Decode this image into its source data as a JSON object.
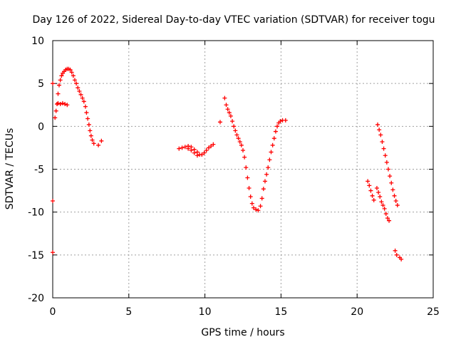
{
  "chart_data": {
    "type": "scatter",
    "title": "Day 126 of 2022, Sidereal Day-to-day VTEC variation (SDTVAR) for receiver togu",
    "xlabel": "GPS time / hours",
    "ylabel": "SDTVAR / TECUs",
    "xlim": [
      0,
      25
    ],
    "ylim": [
      -20,
      10
    ],
    "x_ticks": [
      0,
      5,
      10,
      15,
      20,
      25
    ],
    "y_ticks": [
      -20,
      -15,
      -10,
      -5,
      0,
      5,
      10
    ],
    "x_tick_labels": [
      "0",
      "5",
      "10",
      "15",
      "20",
      "25"
    ],
    "y_tick_labels": [
      "-20",
      "-15",
      "-10",
      "-5",
      "0",
      "5",
      "10"
    ],
    "grid": true,
    "legend": "none",
    "marker": "plus",
    "color": "#ff0000",
    "series": [
      {
        "points": [
          [
            0.0,
            5.0
          ],
          [
            0.0,
            -8.7
          ],
          [
            0.0,
            -14.7
          ],
          [
            0.15,
            1.0
          ],
          [
            0.22,
            1.8
          ],
          [
            0.28,
            2.6
          ],
          [
            0.35,
            3.8
          ],
          [
            0.42,
            4.8
          ],
          [
            0.5,
            5.4
          ],
          [
            0.58,
            5.9
          ],
          [
            0.66,
            6.2
          ],
          [
            0.75,
            6.4
          ],
          [
            0.85,
            6.6
          ],
          [
            0.95,
            6.7
          ],
          [
            1.05,
            6.7
          ],
          [
            1.15,
            6.6
          ],
          [
            1.25,
            6.3
          ],
          [
            1.35,
            5.9
          ],
          [
            1.45,
            5.4
          ],
          [
            1.55,
            5.0
          ],
          [
            1.65,
            4.5
          ],
          [
            1.75,
            4.1
          ],
          [
            1.85,
            3.7
          ],
          [
            1.95,
            3.3
          ],
          [
            2.05,
            2.9
          ],
          [
            2.15,
            2.3
          ],
          [
            2.22,
            1.6
          ],
          [
            2.3,
            0.9
          ],
          [
            2.38,
            0.2
          ],
          [
            2.45,
            -0.5
          ],
          [
            2.52,
            -1.1
          ],
          [
            2.6,
            -1.6
          ],
          [
            2.7,
            -2.0
          ],
          [
            0.35,
            2.7
          ],
          [
            0.5,
            2.6
          ],
          [
            0.65,
            2.7
          ],
          [
            0.8,
            2.6
          ],
          [
            0.95,
            2.5
          ],
          [
            3.0,
            -2.2
          ],
          [
            3.2,
            -1.7
          ],
          [
            8.3,
            -2.6
          ],
          [
            8.5,
            -2.5
          ],
          [
            8.7,
            -2.4
          ],
          [
            8.9,
            -2.3
          ],
          [
            9.1,
            -2.4
          ],
          [
            9.3,
            -2.7
          ],
          [
            9.5,
            -3.0
          ],
          [
            9.65,
            -3.3
          ],
          [
            9.8,
            -3.3
          ],
          [
            9.95,
            -3.1
          ],
          [
            10.1,
            -2.8
          ],
          [
            10.25,
            -2.5
          ],
          [
            10.4,
            -2.3
          ],
          [
            10.55,
            -2.1
          ],
          [
            8.9,
            -2.6
          ],
          [
            9.1,
            -2.8
          ],
          [
            9.3,
            -3.1
          ],
          [
            9.5,
            -3.4
          ],
          [
            11.0,
            0.5
          ],
          [
            11.3,
            3.3
          ],
          [
            11.4,
            2.5
          ],
          [
            11.5,
            2.0
          ],
          [
            11.6,
            1.6
          ],
          [
            11.7,
            1.2
          ],
          [
            11.8,
            0.6
          ],
          [
            11.9,
            0.0
          ],
          [
            12.0,
            -0.5
          ],
          [
            12.1,
            -1.0
          ],
          [
            12.2,
            -1.4
          ],
          [
            12.3,
            -1.8
          ],
          [
            12.4,
            -2.2
          ],
          [
            12.5,
            -2.8
          ],
          [
            12.6,
            -3.6
          ],
          [
            12.7,
            -4.8
          ],
          [
            12.8,
            -6.0
          ],
          [
            12.9,
            -7.2
          ],
          [
            13.0,
            -8.2
          ],
          [
            13.1,
            -9.0
          ],
          [
            13.2,
            -9.5
          ],
          [
            13.35,
            -9.7
          ],
          [
            13.5,
            -9.8
          ],
          [
            13.65,
            -9.3
          ],
          [
            13.75,
            -8.4
          ],
          [
            13.85,
            -7.3
          ],
          [
            13.95,
            -6.4
          ],
          [
            14.05,
            -5.6
          ],
          [
            14.15,
            -4.8
          ],
          [
            14.25,
            -3.9
          ],
          [
            14.35,
            -3.0
          ],
          [
            14.45,
            -2.2
          ],
          [
            14.55,
            -1.4
          ],
          [
            14.65,
            -0.6
          ],
          [
            14.75,
            0.0
          ],
          [
            14.85,
            0.4
          ],
          [
            14.95,
            0.6
          ],
          [
            15.1,
            0.7
          ],
          [
            15.3,
            0.7
          ],
          [
            20.7,
            -6.4
          ],
          [
            20.8,
            -6.9
          ],
          [
            20.9,
            -7.5
          ],
          [
            21.0,
            -8.1
          ],
          [
            21.1,
            -8.6
          ],
          [
            21.3,
            -7.2
          ],
          [
            21.4,
            -7.7
          ],
          [
            21.5,
            -8.2
          ],
          [
            21.6,
            -8.8
          ],
          [
            21.7,
            -9.2
          ],
          [
            21.8,
            -9.6
          ],
          [
            21.9,
            -10.2
          ],
          [
            22.0,
            -10.7
          ],
          [
            22.1,
            -11.0
          ],
          [
            21.35,
            0.2
          ],
          [
            21.45,
            -0.4
          ],
          [
            21.55,
            -1.0
          ],
          [
            21.65,
            -1.8
          ],
          [
            21.75,
            -2.6
          ],
          [
            21.85,
            -3.4
          ],
          [
            21.95,
            -4.2
          ],
          [
            22.05,
            -5.0
          ],
          [
            22.15,
            -5.8
          ],
          [
            22.25,
            -6.6
          ],
          [
            22.35,
            -7.4
          ],
          [
            22.45,
            -8.1
          ],
          [
            22.55,
            -8.7
          ],
          [
            22.65,
            -9.2
          ],
          [
            22.5,
            -14.5
          ],
          [
            22.6,
            -15.0
          ],
          [
            22.8,
            -15.3
          ],
          [
            22.9,
            -15.5
          ]
        ]
      }
    ]
  }
}
